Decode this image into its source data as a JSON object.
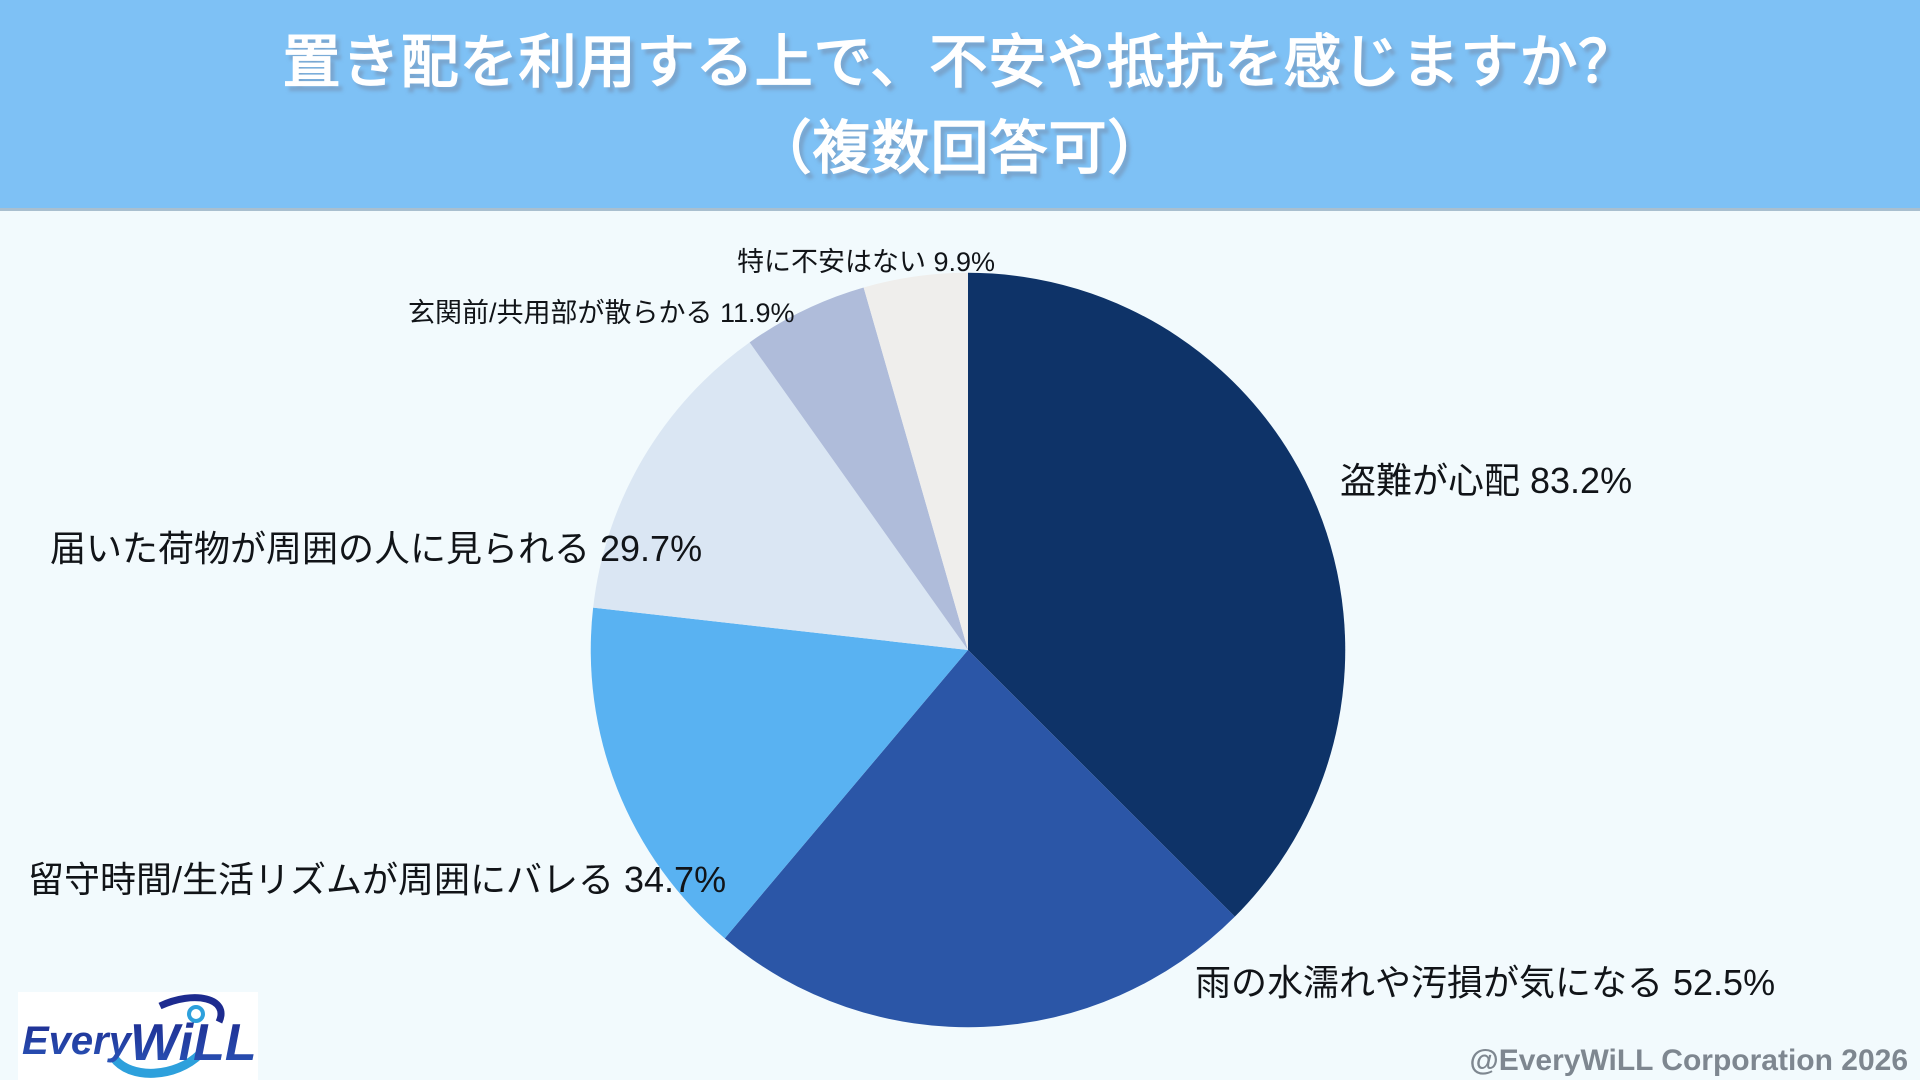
{
  "header": {
    "title_line1": "置き配を利用する上で、不安や抵抗を感じますか？",
    "title_line2": "（複数回答可）"
  },
  "chart_data": {
    "type": "pie",
    "title": "置き配を利用する上で、不安や抵抗を感じますか？（複数回答可）",
    "categories": [
      "盗難が心配",
      "雨の水濡れや汚損が気になる",
      "留守時間/生活リズムが周囲にバレる",
      "届いた荷物が周囲の人に見られる",
      "玄関前/共用部が散らかる",
      "特に不安はない"
    ],
    "values": [
      83.2,
      52.5,
      34.7,
      29.7,
      11.9,
      9.9
    ],
    "unit": "%",
    "multiple_answers": true,
    "colors": [
      "#0E3368",
      "#2B56A7",
      "#59B2F2",
      "#DAE6F3",
      "#AFBCDA",
      "#EFEEEC"
    ],
    "start_angle": "12-oclock",
    "direction": "clockwise",
    "legend_position": "outside-labels"
  },
  "theme": {
    "header_bg": "#7EC1F5",
    "page_bg": "#F2FAFD",
    "title_color": "#FFFFFF",
    "label_color": "#111418",
    "copyright_color": "#7E8790",
    "logo_navy": "#232E92",
    "logo_light_blue": "#2DA0DC"
  },
  "footer": {
    "logo_text_every": "Every",
    "logo_text_will": "WiLL",
    "copyright": "@EveryWiLL Corporation 2026"
  }
}
